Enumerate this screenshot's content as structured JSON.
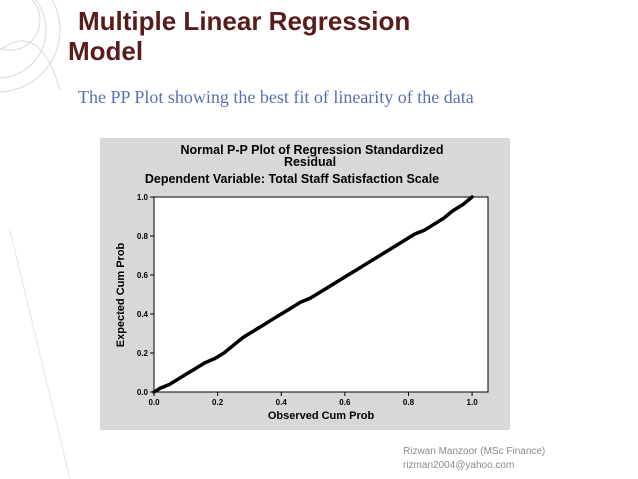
{
  "slide": {
    "title_line1": "Multiple Linear Regression",
    "title_line2": "Model",
    "subtitle": "The PP Plot showing the best fit of linearity of the data",
    "footer_name": "Rizwan Manzoor (MSc Finance)",
    "footer_email": "rizman2004@yahoo.com",
    "title_color": "#5a1b1b",
    "subtitle_color": "#5b6fae"
  },
  "chart_data": {
    "type": "line",
    "title_lines": [
      "Normal P-P Plot of Regression Standardized",
      "Residual",
      "Dependent Variable: Total Staff Satisfaction Scale"
    ],
    "xlabel": "Observed Cum Prob",
    "ylabel": "Expected Cum Prob",
    "xlim": [
      0,
      1.05
    ],
    "ylim": [
      0,
      1.0
    ],
    "xticks": [
      "0.0",
      "0.2",
      "0.4",
      "0.6",
      "0.8",
      "1.0"
    ],
    "yticks": [
      "0.0",
      "0.2",
      "0.4",
      "0.6",
      "0.8",
      "1.0"
    ],
    "grid": false,
    "series": [
      {
        "x": [
          0.0,
          0.02,
          0.05,
          0.08,
          0.1,
          0.13,
          0.16,
          0.19,
          0.22,
          0.25,
          0.28,
          0.31,
          0.34,
          0.37,
          0.4,
          0.43,
          0.46,
          0.49,
          0.52,
          0.55,
          0.58,
          0.61,
          0.64,
          0.67,
          0.7,
          0.73,
          0.76,
          0.79,
          0.82,
          0.85,
          0.88,
          0.91,
          0.94,
          0.97,
          1.0
        ],
        "y": [
          0.0,
          0.02,
          0.04,
          0.07,
          0.09,
          0.12,
          0.15,
          0.17,
          0.2,
          0.24,
          0.28,
          0.31,
          0.34,
          0.37,
          0.4,
          0.43,
          0.46,
          0.48,
          0.51,
          0.54,
          0.57,
          0.6,
          0.63,
          0.66,
          0.69,
          0.72,
          0.75,
          0.78,
          0.81,
          0.83,
          0.86,
          0.89,
          0.93,
          0.96,
          1.0
        ]
      }
    ],
    "line_color": "#000000"
  }
}
